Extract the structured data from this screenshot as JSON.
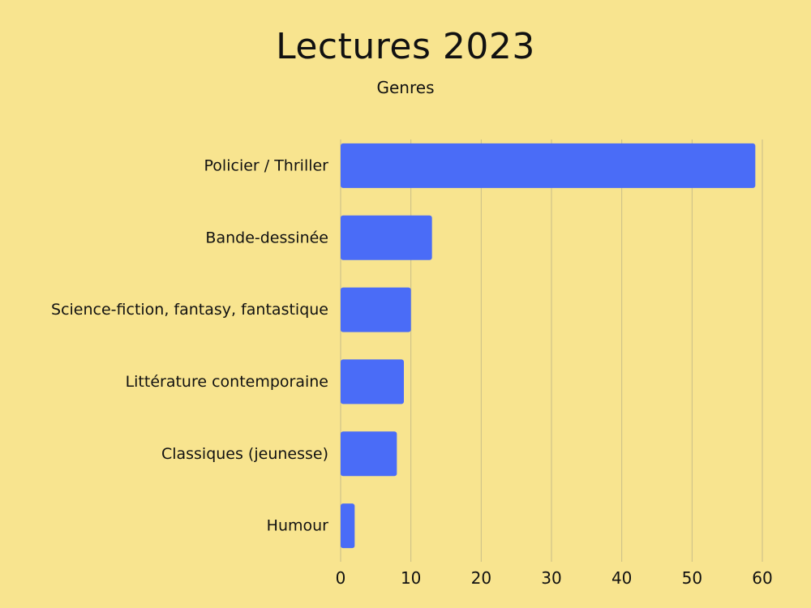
{
  "chart_data": {
    "type": "bar",
    "orientation": "horizontal",
    "title": "Lectures 2023",
    "subtitle": "Genres",
    "categories": [
      "Policier / Thriller",
      "Bande-dessinée",
      "Science-fiction, fantasy, fantastique",
      "Littérature contemporaine",
      "Classiques (jeunesse)",
      "Humour"
    ],
    "values": [
      59,
      13,
      10,
      9,
      8,
      2
    ],
    "xlim": [
      0,
      60
    ],
    "xticks": [
      "0",
      "10",
      "20",
      "30",
      "40",
      "50",
      "60"
    ],
    "grid": true,
    "legend": "none",
    "bar_color": "#4a6cf7",
    "grid_color": "#c9bd88"
  }
}
